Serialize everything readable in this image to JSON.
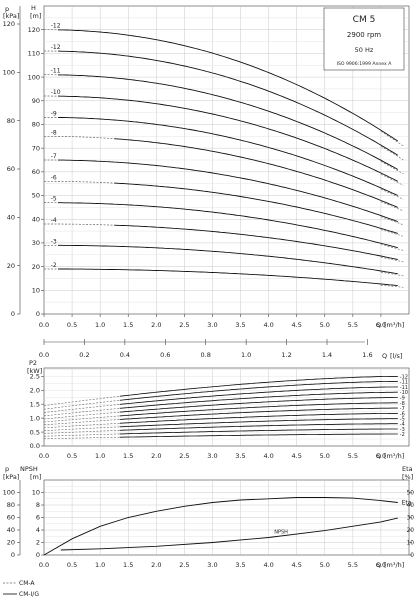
{
  "chart_data": [
    {
      "type": "line",
      "info": {
        "model": "CM 5",
        "speed": "2900 rpm",
        "frequency": "50 Hz",
        "standard": "ISO 9906:1999 Annex A"
      },
      "axes": {
        "left_outer": {
          "label": "p",
          "unit": "[kPa]",
          "ticks": [
            0,
            20,
            40,
            60,
            80,
            100,
            120
          ]
        },
        "left_inner": {
          "label": "H",
          "unit": "[m]",
          "ticks": [
            0,
            10,
            20,
            30,
            40,
            50,
            60,
            70,
            80,
            90,
            100,
            110,
            120
          ]
        },
        "x_flow": {
          "label": "Q",
          "unit": "[m³/h]",
          "ticks": [
            "0.0",
            "0.5",
            "1.0",
            "1.5",
            "2.0",
            "2.5",
            "3.0",
            "3.5",
            "4.0",
            "4.5",
            "5.0",
            "5.5",
            "6.0"
          ]
        },
        "x_flow_ls": {
          "label": "Q",
          "unit": "[l/s]",
          "ticks": [
            "0.0",
            "0.2",
            "0.4",
            "0.6",
            "0.8",
            "1.0",
            "1.2",
            "1.4",
            "1.6"
          ]
        }
      },
      "xlim": [
        0,
        6.5
      ],
      "ylim": [
        0,
        130
      ],
      "series": [
        {
          "name": "-12",
          "H0": 120,
          "Hend": 73,
          "dashed_until": 0.3
        },
        {
          "name": "-12",
          "H0": 111,
          "Hend": 67,
          "dashed_until": 0.3
        },
        {
          "name": "-11",
          "H0": 101,
          "Hend": 61,
          "dashed_until": 0.3
        },
        {
          "name": "-10",
          "H0": 92,
          "Hend": 56,
          "dashed_until": 0.3
        },
        {
          "name": "-9",
          "H0": 83,
          "Hend": 50,
          "dashed_until": 0.3
        },
        {
          "name": "-8",
          "H0": 75,
          "Hend": 45,
          "dashed_until": 1.3
        },
        {
          "name": "-7",
          "H0": 65,
          "Hend": 39,
          "dashed_until": 0.3
        },
        {
          "name": "-6",
          "H0": 56,
          "Hend": 34,
          "dashed_until": 1.3
        },
        {
          "name": "-5",
          "H0": 47,
          "Hend": 28,
          "dashed_until": 0.3
        },
        {
          "name": "-4",
          "H0": 38,
          "Hend": 23,
          "dashed_until": 1.3
        },
        {
          "name": "-3",
          "H0": 29,
          "Hend": 17,
          "dashed_until": 0.3
        },
        {
          "name": "-2",
          "H0": 19,
          "Hend": 12,
          "dashed_until": 0.3
        }
      ]
    },
    {
      "type": "line",
      "axes": {
        "left": {
          "label": "P2",
          "unit": "[kW]",
          "ticks": [
            "0.0",
            "0.5",
            "1.0",
            "1.5",
            "2.0",
            "2.5"
          ]
        },
        "x_flow": {
          "label": "Q",
          "unit": "[m³/h]",
          "ticks": [
            "0.0",
            "0.5",
            "1.0",
            "1.5",
            "2.0",
            "2.5",
            "3.0",
            "3.5",
            "4.0",
            "4.5",
            "5.0",
            "5.5",
            "6.0"
          ]
        }
      },
      "xlim": [
        0,
        6.5
      ],
      "ylim": [
        0,
        2.8
      ],
      "series": [
        {
          "name": "-12",
          "P0": 1.45,
          "Pend": 2.5
        },
        {
          "name": "-11",
          "P0": 1.32,
          "Pend": 2.32
        },
        {
          "name": "-11",
          "P0": 1.2,
          "Pend": 2.12
        },
        {
          "name": "-10",
          "P0": 1.08,
          "Pend": 1.93
        },
        {
          "name": "-9",
          "P0": 0.97,
          "Pend": 1.74
        },
        {
          "name": "-8",
          "P0": 0.86,
          "Pend": 1.55
        },
        {
          "name": "-7",
          "P0": 0.76,
          "Pend": 1.36
        },
        {
          "name": "-6",
          "P0": 0.65,
          "Pend": 1.17
        },
        {
          "name": "-5",
          "P0": 0.55,
          "Pend": 0.98
        },
        {
          "name": "-4",
          "P0": 0.45,
          "Pend": 0.8
        },
        {
          "name": "-3",
          "P0": 0.35,
          "Pend": 0.61
        },
        {
          "name": "-2",
          "P0": 0.26,
          "Pend": 0.43
        }
      ]
    },
    {
      "type": "line",
      "axes": {
        "left_outer": {
          "label": "p",
          "unit": "[kPa]",
          "ticks": [
            0,
            20,
            40,
            60,
            80,
            100
          ]
        },
        "left_inner": {
          "label": "NPSH",
          "unit": "[m]",
          "ticks": [
            0,
            2,
            4,
            6,
            8,
            10
          ]
        },
        "right": {
          "label": "Eta",
          "unit": "[%]",
          "ticks": [
            0,
            10,
            20,
            30,
            40,
            50
          ]
        },
        "x_flow": {
          "label": "Q",
          "unit": "[m³/h]",
          "ticks": [
            "0.0",
            "0.5",
            "1.0",
            "1.5",
            "2.0",
            "2.5",
            "3.0",
            "3.5",
            "4.0",
            "4.5",
            "5.0",
            "5.5",
            "6.0"
          ]
        }
      },
      "xlim": [
        0,
        6.5
      ],
      "series": [
        {
          "name": "Eta",
          "x": [
            0,
            0.5,
            1.0,
            1.5,
            2.0,
            2.5,
            3.0,
            3.5,
            4.0,
            4.5,
            5.0,
            5.5,
            6.0,
            6.3
          ],
          "y": [
            0,
            13,
            23,
            30,
            35,
            39,
            42,
            44,
            45,
            46,
            46,
            45.5,
            43.5,
            42
          ]
        },
        {
          "name": "NPSH",
          "x": [
            0.3,
            1.0,
            2.0,
            3.0,
            4.0,
            5.0,
            6.0,
            6.3
          ],
          "y": [
            0.8,
            1.0,
            1.4,
            2.0,
            2.8,
            3.9,
            5.3,
            5.9
          ]
        }
      ]
    }
  ],
  "legend": {
    "items": [
      "CM-A",
      "CM-I/G"
    ]
  }
}
